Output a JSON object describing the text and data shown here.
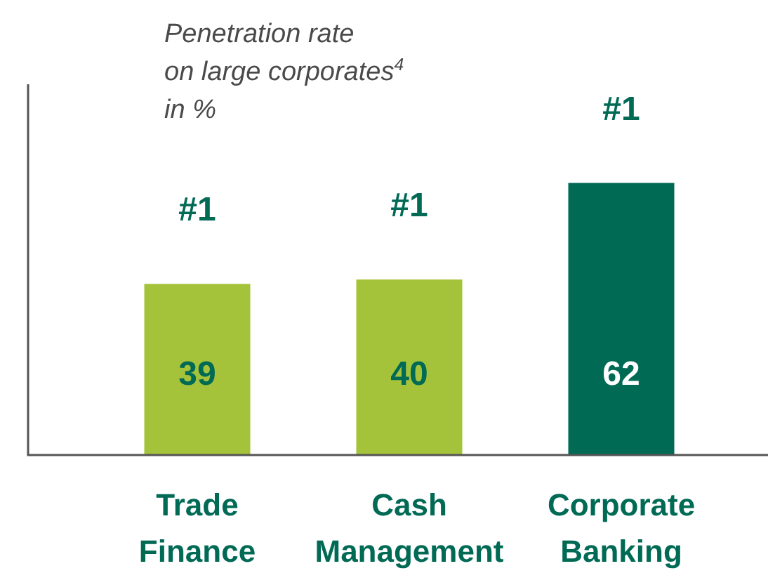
{
  "chart_data": {
    "type": "bar",
    "title": "Penetration rate on large corporates$^{4}$ in %",
    "categories": [
      "Trade Finance",
      "Cash Management",
      "Corporate Banking"
    ],
    "values": [
      39,
      40,
      62
    ],
    "colors": [
      "#a5c33a",
      "#a5c33a",
      "#006a55"
    ],
    "data_labels": true,
    "annotations": [
      "#1",
      "#1",
      "#1"
    ]
  }
}
